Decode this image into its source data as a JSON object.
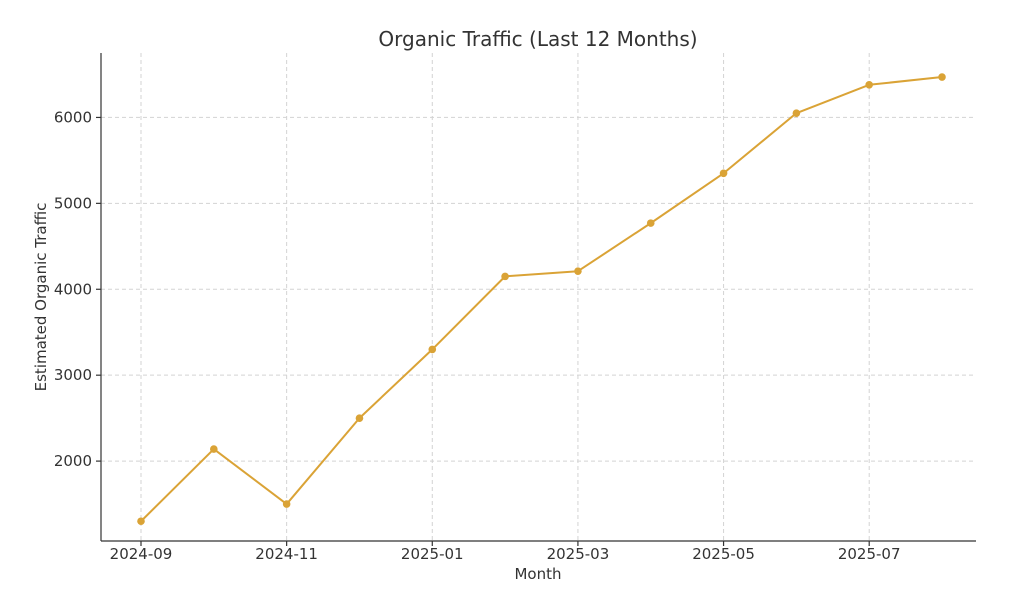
{
  "chart_data": {
    "type": "line",
    "title": "Organic Traffic (Last 12 Months)",
    "xlabel": "Month",
    "ylabel": "Estimated Organic Traffic",
    "x": [
      "2024-09",
      "2024-10",
      "2024-11",
      "2024-12",
      "2025-01",
      "2025-02",
      "2025-03",
      "2025-04",
      "2025-05",
      "2025-06",
      "2025-07",
      "2025-08"
    ],
    "series": [
      {
        "color": "#DAA336",
        "values": [
          1300,
          2140,
          1500,
          2500,
          3300,
          4150,
          4210,
          4770,
          5350,
          6050,
          6380,
          6470
        ]
      }
    ],
    "x_ticks": [
      "2024-09",
      "2024-11",
      "2025-01",
      "2025-03",
      "2025-05",
      "2025-07"
    ],
    "y_ticks": [
      2000,
      3000,
      4000,
      5000,
      6000
    ],
    "ylim": [
      1070,
      6750
    ],
    "grid": true,
    "legend": false
  }
}
